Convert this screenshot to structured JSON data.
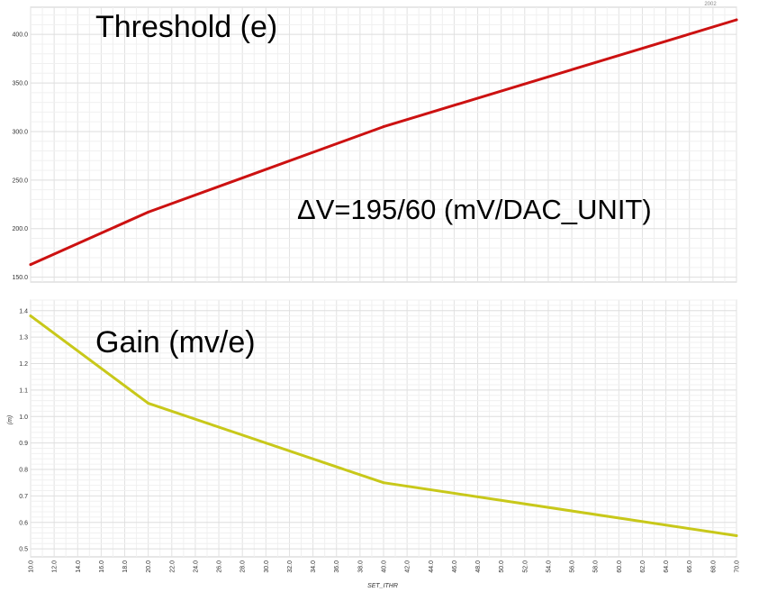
{
  "chart_data": [
    {
      "type": "line",
      "title": "Threshold (e)",
      "annotation": "ΔV=195/60 (mV/DAC_UNIT)",
      "x": [
        10,
        20,
        40,
        70
      ],
      "series": [
        {
          "values": [
            163,
            217,
            305,
            415
          ],
          "color": "#cc1111"
        }
      ],
      "ylim": [
        145,
        428
      ],
      "yticks": [
        150,
        200,
        250,
        300,
        350,
        400
      ],
      "ytick_labels": [
        "150.0",
        "200.0",
        "250.0",
        "300.0",
        "350.0",
        "400.0"
      ],
      "grid": true
    },
    {
      "type": "line",
      "title": "Gain (mv/e)",
      "ylabel": "(m)",
      "xlabel": "SET_ITHR",
      "x": [
        10,
        20,
        40,
        70
      ],
      "series": [
        {
          "values": [
            1.38,
            1.05,
            0.75,
            0.55
          ],
          "color": "#c8c81a"
        }
      ],
      "ylim": [
        0.47,
        1.44
      ],
      "yticks": [
        0.5,
        0.6,
        0.7,
        0.8,
        0.9,
        1.0,
        1.1,
        1.2,
        1.3,
        1.4
      ],
      "ytick_labels": [
        "0.5",
        "0.6",
        "0.7",
        "0.8",
        "0.9",
        "1.0",
        "1.1",
        "1.2",
        "1.3",
        "1.4"
      ],
      "xlim": [
        10,
        70
      ],
      "xticks": [
        10,
        12,
        14,
        16,
        18,
        20,
        22,
        24,
        26,
        28,
        30,
        32,
        34,
        36,
        38,
        40,
        42,
        44,
        46,
        48,
        50,
        52,
        54,
        56,
        58,
        60,
        62,
        64,
        66,
        68,
        70
      ],
      "xtick_labels": [
        "10.0",
        "12.0",
        "14.0",
        "16.0",
        "18.0",
        "20.0",
        "22.0",
        "24.0",
        "26.0",
        "28.0",
        "30.0",
        "32.0",
        "34.0",
        "36.0",
        "38.0",
        "40.0",
        "42.0",
        "44.0",
        "46.0",
        "48.0",
        "50.0",
        "52.0",
        "54.0",
        "56.0",
        "58.0",
        "60.0",
        "62.0",
        "64.0",
        "66.0",
        "68.0",
        "70.0"
      ],
      "grid": true
    }
  ],
  "corner_label": "2002"
}
